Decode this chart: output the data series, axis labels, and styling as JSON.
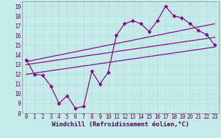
{
  "xlabel": "Windchill (Refroidissement éolien,°C)",
  "bg_color": "#c5eceb",
  "line_color": "#880088",
  "grid_color": "#b0d8d8",
  "xlim": [
    -0.5,
    23.5
  ],
  "ylim": [
    8,
    19.5
  ],
  "xticks": [
    0,
    1,
    2,
    3,
    4,
    5,
    6,
    7,
    8,
    9,
    10,
    11,
    12,
    13,
    14,
    15,
    16,
    17,
    18,
    19,
    20,
    21,
    22,
    23
  ],
  "yticks": [
    8,
    9,
    10,
    11,
    12,
    13,
    14,
    15,
    16,
    17,
    18,
    19
  ],
  "line1_y": [
    13.5,
    12.0,
    11.9,
    10.8,
    9.0,
    9.8,
    8.5,
    8.7,
    12.3,
    11.0,
    12.2,
    16.0,
    17.2,
    17.5,
    17.2,
    16.4,
    17.5,
    19.0,
    18.0,
    17.8,
    17.2,
    16.5,
    16.1,
    15.0
  ],
  "trend1": [
    13.3,
    17.2
  ],
  "trend2": [
    13.0,
    15.8
  ],
  "trend3": [
    12.0,
    14.8
  ],
  "marker": "D",
  "markersize": 2.5,
  "linewidth": 0.9,
  "xlabel_fontsize": 6.5,
  "tick_fontsize": 5.5
}
